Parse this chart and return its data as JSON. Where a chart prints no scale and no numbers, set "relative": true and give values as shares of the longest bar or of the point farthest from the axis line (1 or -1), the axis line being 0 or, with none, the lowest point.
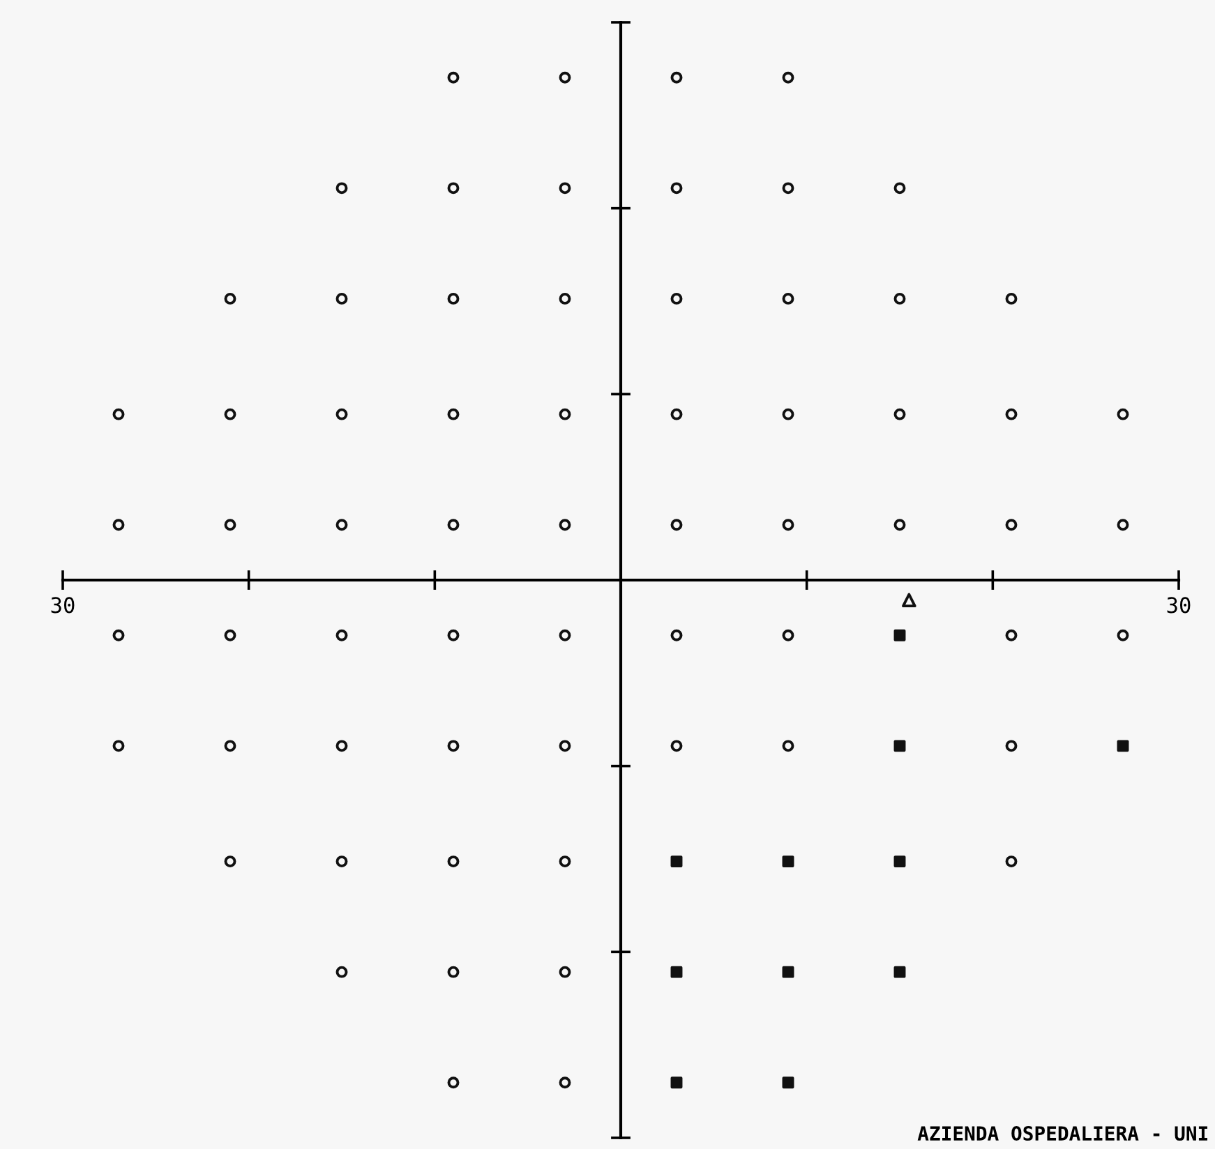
{
  "chart_data": {
    "type": "scatter",
    "relative": true,
    "xlim": [
      -30,
      30
    ],
    "xticks": [
      {
        "value": -30,
        "label": "30"
      },
      {
        "value": -20,
        "label": null
      },
      {
        "value": -10,
        "label": null
      },
      {
        "value": 10,
        "label": null
      },
      {
        "value": 20,
        "label": null
      },
      {
        "value": 30,
        "label": "30"
      }
    ],
    "grid": false,
    "series": [
      {
        "color": "#111111",
        "marker": "circle",
        "x": [
          -9,
          -3,
          3,
          9,
          -15,
          -9,
          -3,
          3,
          9,
          15,
          -21,
          -15,
          -9,
          -3,
          3,
          9,
          15,
          21,
          -27,
          -21,
          -15,
          -9,
          -3,
          3,
          9,
          15,
          21,
          27,
          -27,
          -21,
          -15,
          -9,
          -3,
          3,
          9,
          15,
          21,
          27,
          -27,
          -21,
          -15,
          -9,
          -3,
          3,
          9,
          21,
          27,
          -27,
          -21,
          -15,
          -9,
          -3,
          3,
          9,
          21,
          -21,
          -15,
          -9,
          -3,
          21,
          -15,
          -9,
          -3,
          -9,
          -3
        ],
        "values": [
          1,
          1,
          1,
          1,
          0.78,
          0.78,
          0.78,
          0.78,
          0.78,
          0.78,
          0.56,
          0.56,
          0.56,
          0.56,
          0.56,
          0.56,
          0.56,
          0.56,
          0.33,
          0.33,
          0.33,
          0.33,
          0.33,
          0.33,
          0.33,
          0.33,
          0.33,
          0.33,
          0.11,
          0.11,
          0.11,
          0.11,
          0.11,
          0.11,
          0.11,
          0.11,
          0.11,
          0.11,
          -0.11,
          -0.11,
          -0.11,
          -0.11,
          -0.11,
          -0.11,
          -0.11,
          -0.11,
          -0.11,
          -0.33,
          -0.33,
          -0.33,
          -0.33,
          -0.33,
          -0.33,
          -0.33,
          -0.33,
          -0.56,
          -0.56,
          -0.56,
          -0.56,
          -0.56,
          -0.78,
          -0.78,
          -0.78,
          -1,
          -1
        ]
      },
      {
        "color": "#111111",
        "marker": "square",
        "x": [
          15,
          15,
          27,
          3,
          9,
          15,
          3,
          9,
          15,
          3,
          9
        ],
        "values": [
          -0.11,
          -0.33,
          -0.33,
          -0.56,
          -0.56,
          -0.56,
          -0.78,
          -0.78,
          -0.78,
          -1,
          -1
        ]
      },
      {
        "color": "#111111",
        "marker": "triangle",
        "x": [
          15.5
        ],
        "values": [
          -0.04
        ]
      }
    ],
    "annotations": [
      "AZIENDA OSPEDALIERA - UNI"
    ]
  }
}
